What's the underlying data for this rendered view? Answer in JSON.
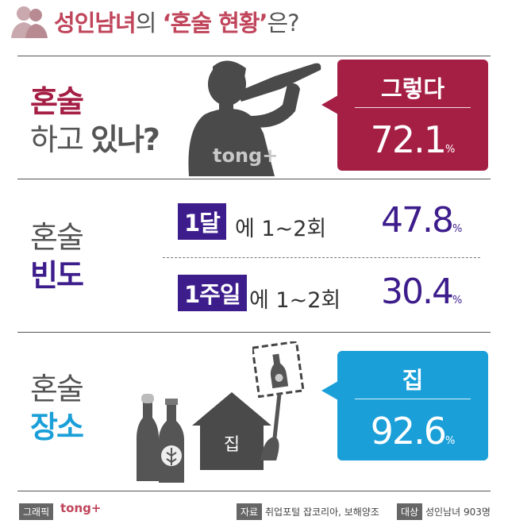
{
  "header": {
    "title_part1": "성인남녀",
    "title_part2": "의 ",
    "title_part3": "‘혼술 현황’",
    "title_part4": "은?"
  },
  "section1": {
    "label_line1": "혼술",
    "label_line2a": "하고 ",
    "label_line2b": "있나?",
    "callout_head": "그렇다",
    "callout_value": "72.1",
    "callout_unit": "%",
    "watermark": "tong+"
  },
  "section2": {
    "label_line1": "혼술",
    "label_line2": "빈도",
    "row1": {
      "tag": "1달",
      "text": "에 1~2회",
      "value": "47.8",
      "unit": "%"
    },
    "row2": {
      "tag": "1주일",
      "text": "에 1~2회",
      "value": "30.4",
      "unit": "%"
    }
  },
  "section3": {
    "label_line1": "혼술",
    "label_line2": "장소",
    "house_label": "집",
    "callout_head": "집",
    "callout_value": "92.6",
    "callout_unit": "%"
  },
  "footer": {
    "graphic_tag": "그래픽",
    "brand": "tong+",
    "source_tag": "자료",
    "source_text": "취업포털 잡코리아, 보해양조",
    "target_tag": "대상",
    "target_text": "성인남녀 903명"
  },
  "colors": {
    "crimson": "#a51f45",
    "purple": "#3d1d8c",
    "sky_blue": "#1a9fd8",
    "dark_grey": "#555555"
  }
}
